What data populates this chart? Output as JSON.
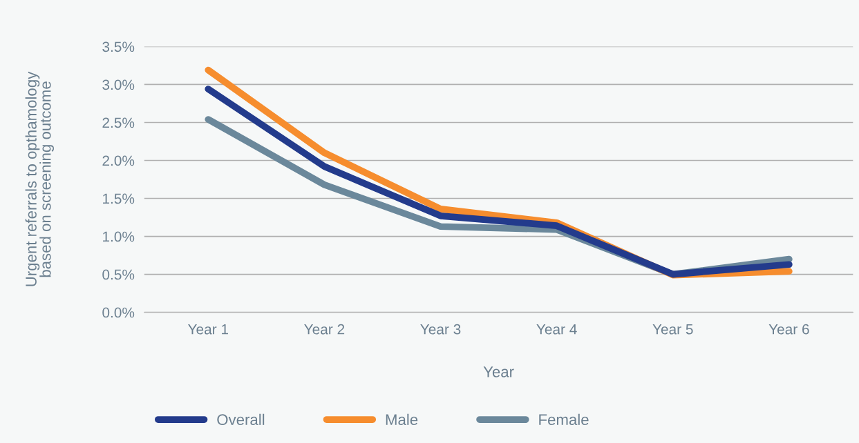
{
  "chart_data": {
    "type": "line",
    "xlabel": "Year",
    "ylabel": "Urgent referrals to opthamology\nbased on screening outcome",
    "categories": [
      "Year 1",
      "Year 2",
      "Year 3",
      "Year 4",
      "Year 5",
      "Year 6"
    ],
    "series": [
      {
        "name": "Overall",
        "color": "#233b8c",
        "values": [
          2.94,
          1.92,
          1.27,
          1.14,
          0.5,
          0.63
        ]
      },
      {
        "name": "Male",
        "color": "#f68d2e",
        "values": [
          3.19,
          2.1,
          1.36,
          1.18,
          0.49,
          0.54
        ]
      },
      {
        "name": "Female",
        "color": "#6b889b",
        "values": [
          2.54,
          1.68,
          1.13,
          1.09,
          0.5,
          0.7
        ]
      }
    ],
    "ylim": [
      0,
      3.5
    ],
    "yticks": [
      {
        "value": 0,
        "label": "0.0%"
      },
      {
        "value": 0.5,
        "label": "0.5%"
      },
      {
        "value": 1,
        "label": "1.0%"
      },
      {
        "value": 1.5,
        "label": "1.5%"
      },
      {
        "value": 2,
        "label": "2.0%"
      },
      {
        "value": 2.5,
        "label": "2.5%"
      },
      {
        "value": 3,
        "label": "3.0%"
      },
      {
        "value": 3.5,
        "label": "3.5%"
      }
    ],
    "grid": "y",
    "legend": "bottom",
    "marker": "none",
    "line_style": "solid"
  }
}
